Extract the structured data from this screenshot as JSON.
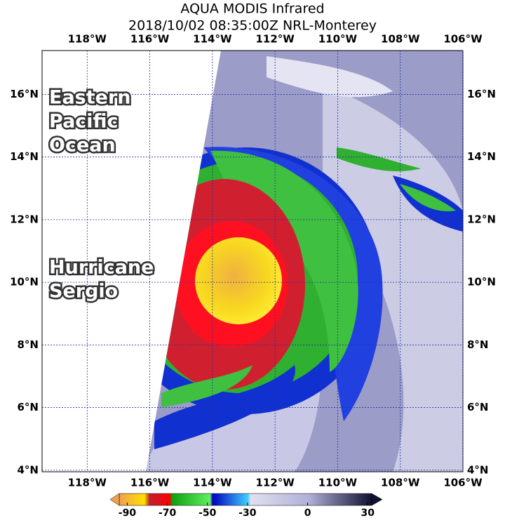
{
  "title": [
    "AQUA MODIS Infrared",
    "2018/10/02 08:35:00Z NRL-Monterey"
  ],
  "map": {
    "xlim": [
      -119.44,
      -106
    ],
    "ylim": [
      3.95,
      17.4
    ],
    "xticks": [
      {
        "value": -118,
        "label": "118°W"
      },
      {
        "value": -116,
        "label": "116°W"
      },
      {
        "value": -114,
        "label": "114°W"
      },
      {
        "value": -112,
        "label": "112°W"
      },
      {
        "value": -110,
        "label": "110°W"
      },
      {
        "value": -108,
        "label": "108°W"
      },
      {
        "value": -106,
        "label": "106°W"
      }
    ],
    "yticks": [
      {
        "value": 4,
        "label": "4°N"
      },
      {
        "value": 6,
        "label": "6°N"
      },
      {
        "value": 8,
        "label": "8°N"
      },
      {
        "value": 10,
        "label": "10°N"
      },
      {
        "value": 12,
        "label": "12°N"
      },
      {
        "value": 14,
        "label": "14°N"
      },
      {
        "value": 16,
        "label": "16°N"
      }
    ]
  },
  "annotations": [
    [
      "Eastern",
      "Pacific",
      "Ocean"
    ],
    [
      "Hurricane",
      "Sergio"
    ]
  ],
  "colorbar": {
    "clim": [
      -94,
      32
    ],
    "ticks": [
      -90,
      -70,
      -50,
      -30,
      0,
      30
    ]
  }
}
